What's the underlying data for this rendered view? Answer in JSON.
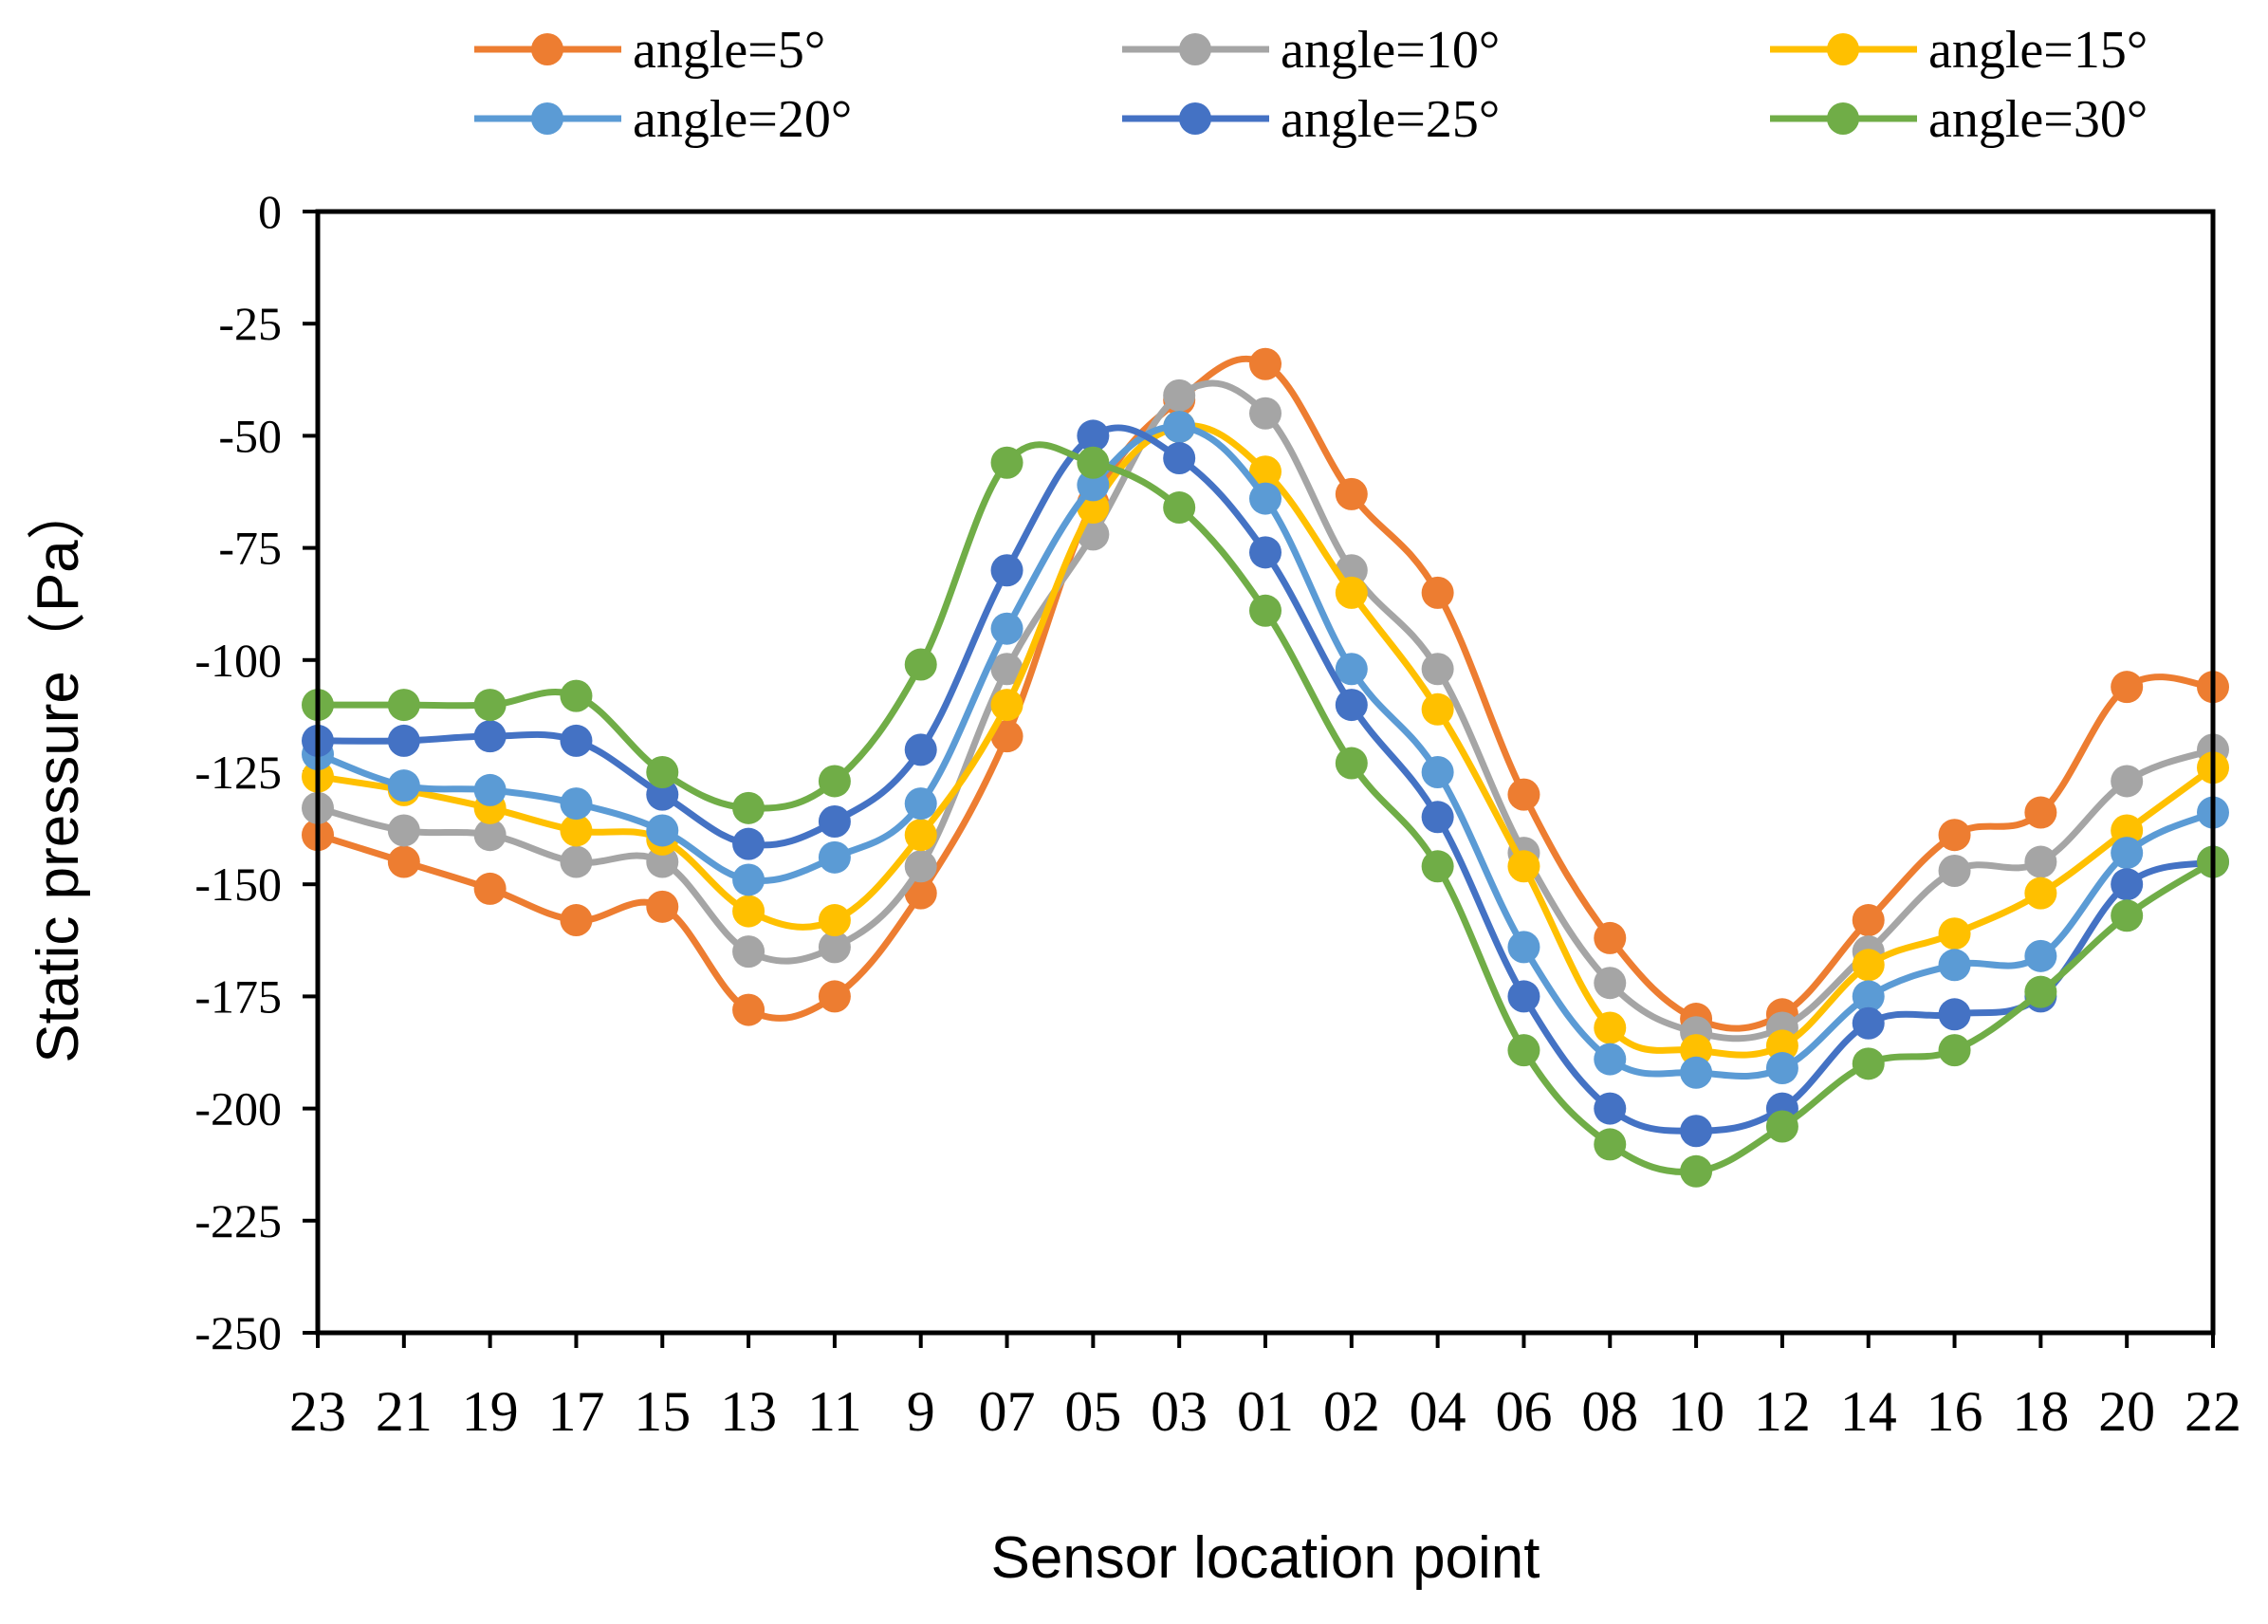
{
  "chart_data": {
    "type": "line",
    "title": "",
    "xlabel": "Sensor location point",
    "ylabel": "Static pressure（Pa）",
    "ylim": [
      -250,
      0
    ],
    "yticks": [
      0,
      -25,
      -50,
      -75,
      -100,
      -125,
      -150,
      -175,
      -200,
      -225,
      -250
    ],
    "categories": [
      "23",
      "21",
      "19",
      "17",
      "15",
      "13",
      "11",
      "9",
      "07",
      "05",
      "03",
      "01",
      "02",
      "04",
      "06",
      "08",
      "10",
      "12",
      "14",
      "16",
      "18",
      "20",
      "22"
    ],
    "legend_position": "top",
    "grid": false,
    "series": [
      {
        "name": "angle=5°",
        "color": "#ED7D31",
        "values": [
          -139,
          -145,
          -151,
          -158,
          -155,
          -178,
          -175,
          -152,
          -117,
          -65,
          -42,
          -34,
          -63,
          -85,
          -130,
          -162,
          -180,
          -179,
          -158,
          -139,
          -134,
          -106,
          -106
        ]
      },
      {
        "name": "angle=10°",
        "color": "#A5A5A5",
        "values": [
          -133,
          -138,
          -139,
          -145,
          -145,
          -165,
          -164,
          -146,
          -102,
          -72,
          -41,
          -45,
          -80,
          -102,
          -143,
          -172,
          -183,
          -182,
          -165,
          -147,
          -145,
          -127,
          -120
        ]
      },
      {
        "name": "angle=15°",
        "color": "#FFC000",
        "values": [
          -126,
          -129,
          -133,
          -138,
          -140,
          -156,
          -158,
          -139,
          -110,
          -66,
          -48,
          -58,
          -85,
          -111,
          -146,
          -182,
          -187,
          -186,
          -168,
          -161,
          -152,
          -138,
          -124
        ]
      },
      {
        "name": "angle=20°",
        "color": "#5B9BD5",
        "values": [
          -121,
          -128,
          -129,
          -132,
          -138,
          -149,
          -144,
          -132,
          -93,
          -61,
          -48,
          -64,
          -102,
          -125,
          -164,
          -189,
          -192,
          -191,
          -175,
          -168,
          -166,
          -143,
          -134
        ]
      },
      {
        "name": "angle=25°",
        "color": "#4472C4",
        "values": [
          -118,
          -118,
          -117,
          -118,
          -130,
          -141,
          -136,
          -120,
          -80,
          -50,
          -55,
          -76,
          -110,
          -135,
          -175,
          -200,
          -205,
          -200,
          -181,
          -179,
          -175,
          -150,
          -145
        ]
      },
      {
        "name": "angle=30°",
        "color": "#70AD47",
        "values": [
          -110,
          -110,
          -110,
          -108,
          -125,
          -133,
          -127,
          -101,
          -56,
          -56,
          -66,
          -89,
          -123,
          -146,
          -187,
          -208,
          -214,
          -204,
          -190,
          -187,
          -174,
          -157,
          -145
        ]
      }
    ]
  }
}
